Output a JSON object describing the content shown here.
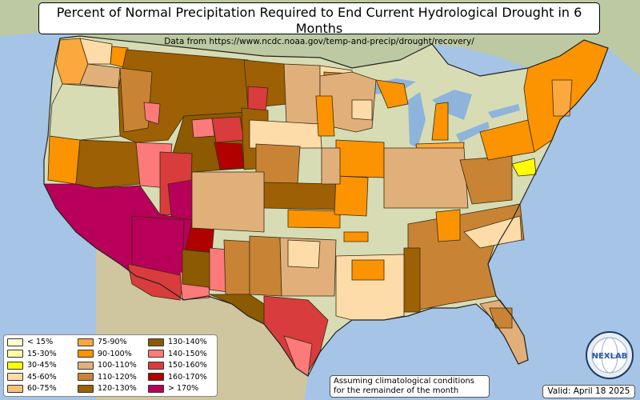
{
  "title": "Percent of Normal Precipitation Required to End Current Hydrological Drought in 6 Months",
  "subtitle": "Data from https://www.ncdc.noaa.gov/temp-and-precip/drought/recovery/",
  "note": {
    "line1": "Assuming climatological conditions",
    "line2": "for the remainder of the month"
  },
  "valid_label": "Valid: April 18 2025",
  "logo": {
    "text": "NEXLAB",
    "icon": "globe-logo-icon"
  },
  "colors": {
    "ocean": "#a6c4e6",
    "land": "#d7dcb4",
    "land_north": "#bcc9a2",
    "mexico": "#cfc6a0",
    "lakes": "#8fb4dc",
    "border": "#3a2a10"
  },
  "legend": [
    {
      "label": "< 15%",
      "color": "#ffffd0"
    },
    {
      "label": "15-30%",
      "color": "#ffffa0"
    },
    {
      "label": "30-45%",
      "color": "#ffff00"
    },
    {
      "label": "45-60%",
      "color": "#fddcaa"
    },
    {
      "label": "60-75%",
      "color": "#fbc078"
    },
    {
      "label": "75-90%",
      "color": "#fba83c"
    },
    {
      "label": "90-100%",
      "color": "#fb9400"
    },
    {
      "label": "100-110%",
      "color": "#e1b07a"
    },
    {
      "label": "110-120%",
      "color": "#c88434"
    },
    {
      "label": "120-130%",
      "color": "#9e6004"
    },
    {
      "label": "130-140%",
      "color": "#8c5a00"
    },
    {
      "label": "140-150%",
      "color": "#fc7a7a"
    },
    {
      "label": "150-160%",
      "color": "#d83c3c"
    },
    {
      "label": "160-170%",
      "color": "#b00000"
    },
    {
      "label": "> 170%",
      "color": "#b8005a"
    }
  ],
  "regions": [
    {
      "name": "Pacific Northwest coast",
      "category": "90-100%"
    },
    {
      "name": "Western Washington",
      "category": "75-90%"
    },
    {
      "name": "Northern Rockies",
      "category": "120-130%"
    },
    {
      "name": "Wyoming / Colorado border",
      "category": "150-160%"
    },
    {
      "name": "Central Colorado",
      "category": "160-170%"
    },
    {
      "name": "Southern California / Arizona / New Mexico",
      "category": "> 170%"
    },
    {
      "name": "Eastern Utah",
      "category": "140-150%"
    },
    {
      "name": "West Texas",
      "category": "130-140%"
    },
    {
      "name": "South Texas",
      "category": "150-160%"
    },
    {
      "name": "Southern Texas coast",
      "category": "140-150%"
    },
    {
      "name": "Northeast",
      "category": "90-100%"
    },
    {
      "name": "Southeast",
      "category": "110-120%"
    },
    {
      "name": "Maryland / Delaware",
      "category": "30-45%"
    }
  ]
}
